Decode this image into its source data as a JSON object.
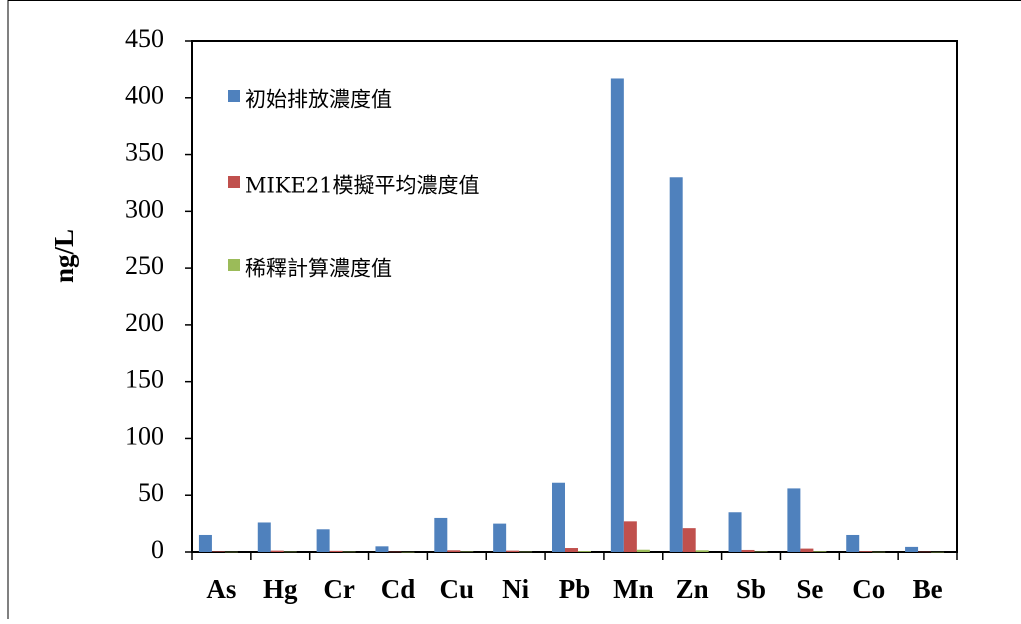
{
  "chart_data": {
    "type": "bar",
    "title": "",
    "xlabel": "",
    "ylabel": "ng/L",
    "ylim": [
      0,
      450
    ],
    "yticks": [
      0,
      50,
      100,
      150,
      200,
      250,
      300,
      350,
      400,
      450
    ],
    "grid": false,
    "legend_position": "top-left inside plot",
    "categories": [
      "As",
      "Hg",
      "Cr",
      "Cd",
      "Cu",
      "Ni",
      "Pb",
      "Mn",
      "Zn",
      "Sb",
      "Se",
      "Co",
      "Be"
    ],
    "series": [
      {
        "name": "初始排放濃度值",
        "color": "#4f81bd",
        "values": [
          15,
          26,
          20,
          5,
          30,
          25,
          61,
          417,
          330,
          35,
          56,
          15,
          4.5
        ]
      },
      {
        "name": "MIKE21模擬平均濃度值",
        "color": "#c0504d",
        "values": [
          0.5,
          1.2,
          1.0,
          0.3,
          1.5,
          1.2,
          3.5,
          27,
          21,
          1.8,
          3.0,
          0.7,
          0.3
        ]
      },
      {
        "name": "稀釋計算濃度值",
        "color": "#9bbb59",
        "values": [
          0.2,
          0.3,
          0.3,
          0.1,
          0.4,
          0.3,
          0.8,
          2.0,
          1.5,
          0.4,
          0.6,
          0.2,
          0.1
        ]
      }
    ]
  }
}
